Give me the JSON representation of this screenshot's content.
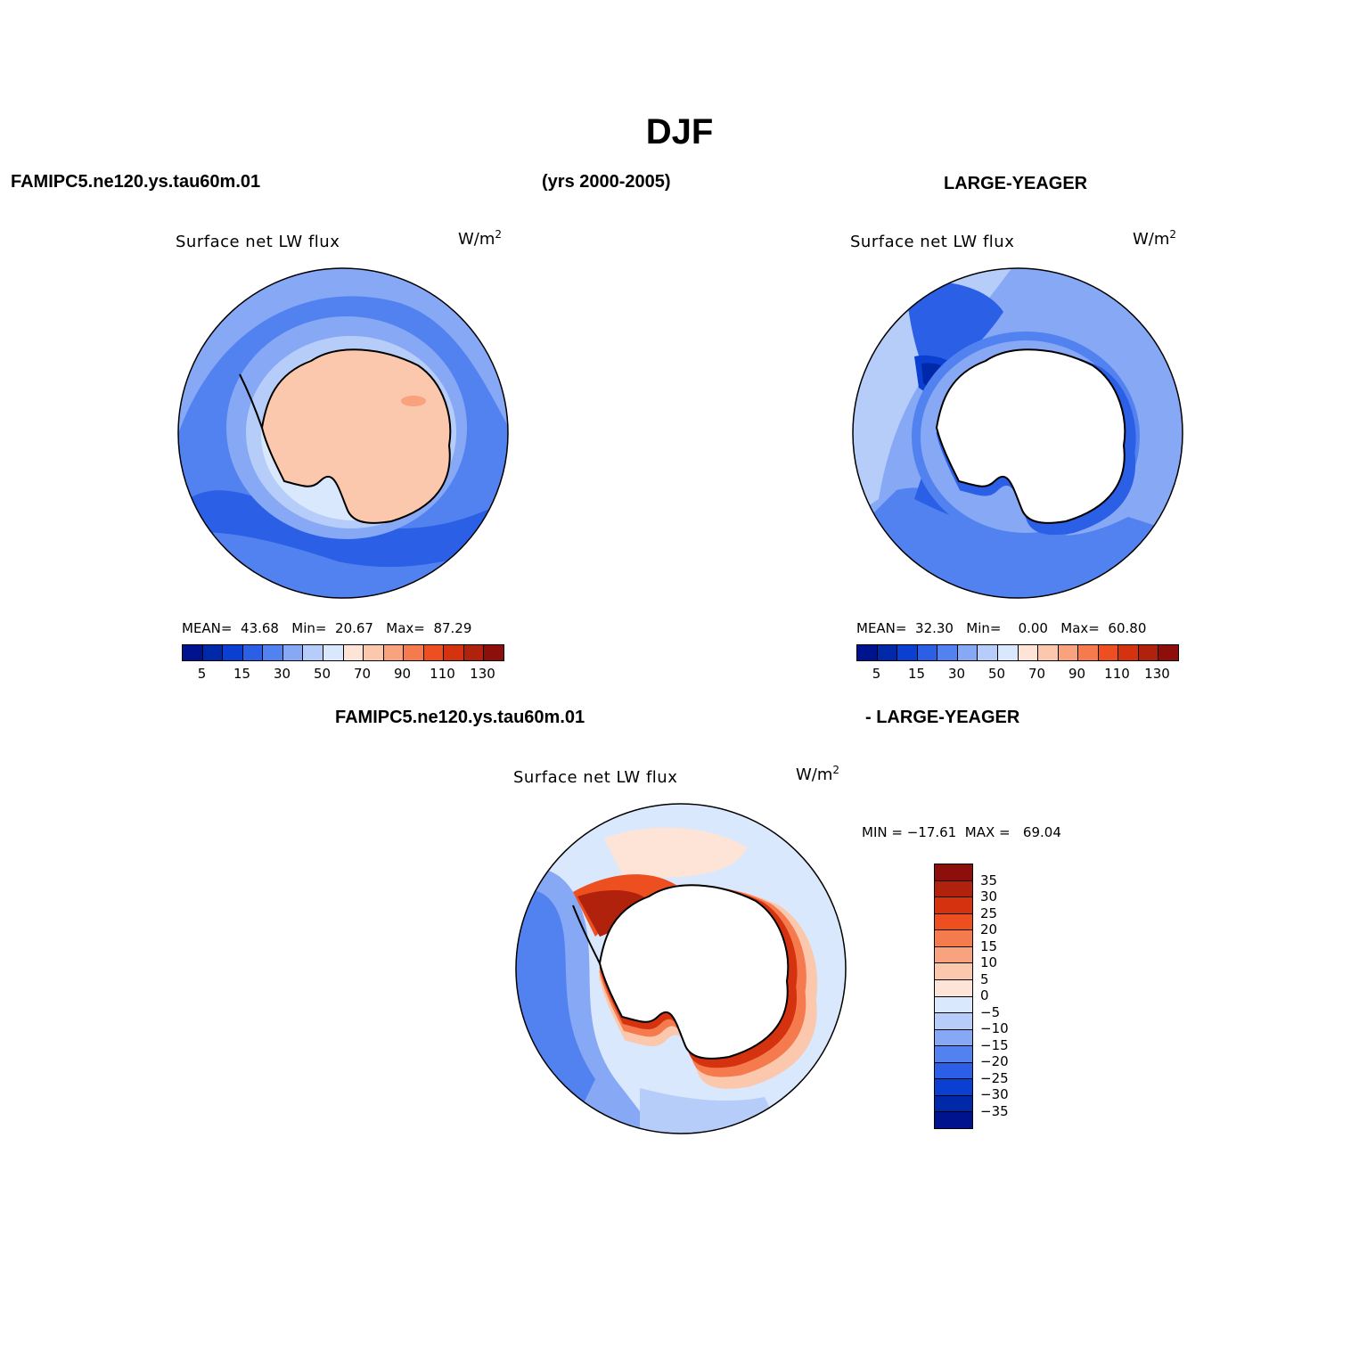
{
  "title": "DJF",
  "header": {
    "left": "FAMIPC5.ne120.ys.tau60m.01",
    "center": "(yrs 2000-2005)",
    "right": "LARGE-YEAGER"
  },
  "diff_header": {
    "left": "FAMIPC5.ne120.ys.tau60m.01",
    "right": "- LARGE-YEAGER"
  },
  "panels": {
    "model": {
      "title": "Surface net LW flux",
      "units_base": "W/m",
      "units_exp": "2",
      "mean_label": "MEAN=",
      "mean": "43.68",
      "min_label": "Min=",
      "min": "20.67",
      "max_label": "Max=",
      "max": "87.29"
    },
    "obs": {
      "title": "Surface net LW flux",
      "units_base": "W/m",
      "units_exp": "2",
      "mean_label": "MEAN=",
      "mean": "32.30",
      "min_label": "Min=",
      "min": "0.00",
      "max_label": "Max=",
      "max": "60.80"
    },
    "diff": {
      "title": "Surface net LW flux",
      "units_base": "W/m",
      "units_exp": "2",
      "min_label": "MIN =",
      "min": "−17.61",
      "max_label": "MAX =",
      "max": "69.04"
    }
  },
  "colorbar_main": {
    "colors": [
      "#00138f",
      "#0029a9",
      "#0b3fd2",
      "#2a5fe6",
      "#5282ef",
      "#86a8f5",
      "#b6ccf9",
      "#d9e8fc",
      "#fde4d6",
      "#fbc8ae",
      "#f8a27e",
      "#f57a4e",
      "#ee4f21",
      "#d5330f",
      "#b1220c",
      "#8c0f0b"
    ],
    "ticks": [
      "5",
      "15",
      "30",
      "50",
      "70",
      "90",
      "110",
      "130"
    ]
  },
  "colorbar_diff": {
    "colors": [
      "#8c0f0b",
      "#b1220c",
      "#d5330f",
      "#ee4f21",
      "#f57a4e",
      "#f8a27e",
      "#fbc8ae",
      "#fde4d6",
      "#d9e8fc",
      "#b6ccf9",
      "#86a8f5",
      "#5282ef",
      "#2a5fe6",
      "#0b3fd2",
      "#0029a9",
      "#00138f"
    ],
    "labels": [
      "35",
      "30",
      "25",
      "20",
      "15",
      "10",
      "5",
      "0",
      "−5",
      "−10",
      "−15",
      "−20",
      "−25",
      "−30",
      "−35"
    ]
  }
}
